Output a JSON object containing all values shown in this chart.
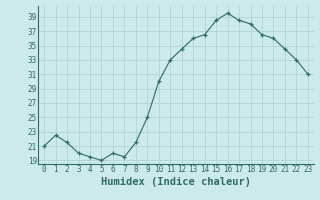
{
  "x": [
    0,
    1,
    2,
    3,
    4,
    5,
    6,
    7,
    8,
    9,
    10,
    11,
    12,
    13,
    14,
    15,
    16,
    17,
    18,
    19,
    20,
    21,
    22,
    23
  ],
  "y": [
    21,
    22.5,
    21.5,
    20,
    19.5,
    19,
    20,
    19.5,
    21.5,
    25,
    30,
    33,
    34.5,
    36,
    36.5,
    38.5,
    39.5,
    38.5,
    38,
    36.5,
    36,
    34.5,
    33,
    31
  ],
  "xlabel": "Humidex (Indice chaleur)",
  "yticks": [
    19,
    21,
    23,
    25,
    27,
    29,
    31,
    33,
    35,
    37,
    39
  ],
  "xticks": [
    0,
    1,
    2,
    3,
    4,
    5,
    6,
    7,
    8,
    9,
    10,
    11,
    12,
    13,
    14,
    15,
    16,
    17,
    18,
    19,
    20,
    21,
    22,
    23
  ],
  "ylim": [
    18.5,
    40.5
  ],
  "xlim": [
    -0.5,
    23.5
  ],
  "line_color": "#2d6e5e",
  "marker_color": "#2d6e5e",
  "bg_color": "#cce9eb",
  "grid_color": "#b0d4d8",
  "tick_color": "#2d6e5e",
  "xlabel_color": "#2d6e5e",
  "tick_fontsize": 5.5,
  "xlabel_fontsize": 7.5
}
